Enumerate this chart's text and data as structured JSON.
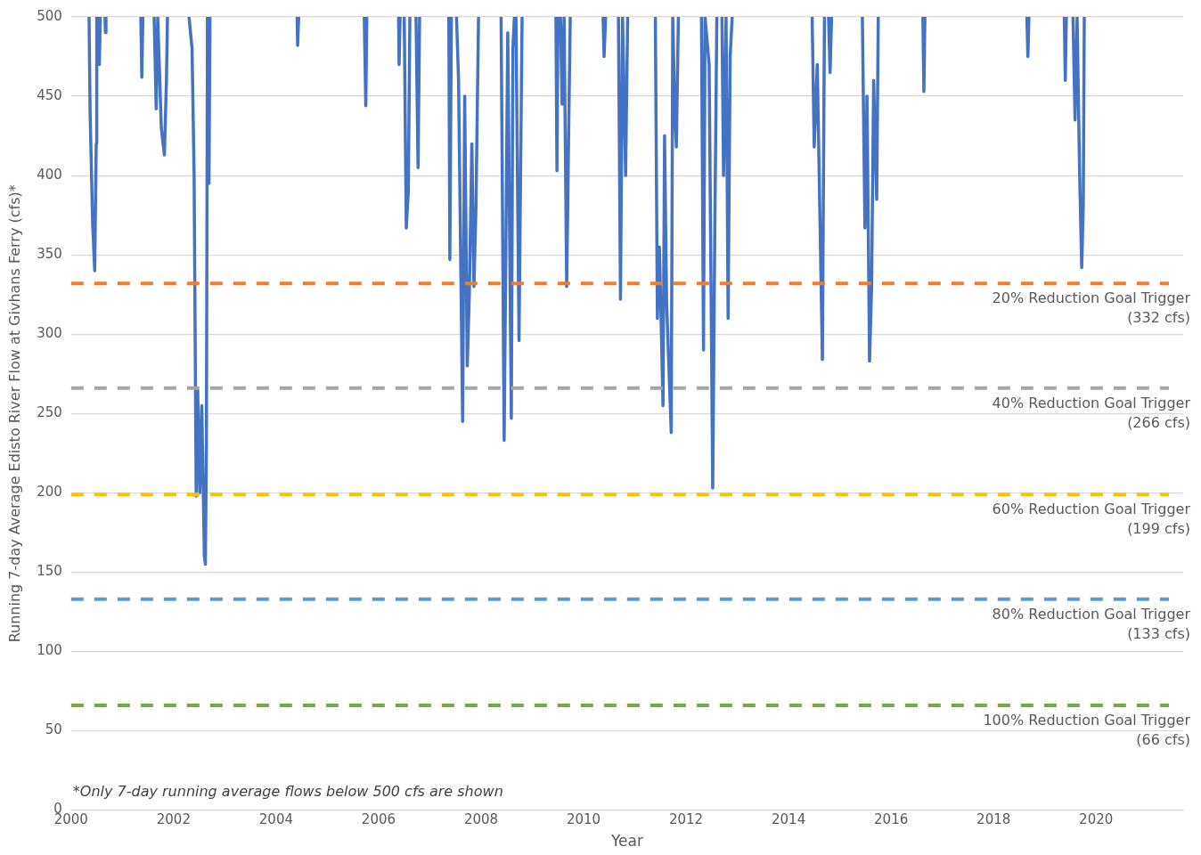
{
  "chart_data": {
    "type": "line",
    "xlabel": "Year",
    "ylabel": "Running 7-day Average Edisto River Flow at Givhans Ferry (cfs)*",
    "xlim": [
      2000,
      2021.7
    ],
    "xticks": [
      2000,
      2002,
      2004,
      2006,
      2008,
      2010,
      2012,
      2014,
      2016,
      2018,
      2020
    ],
    "ylim": [
      0,
      500
    ],
    "yticks": [
      0,
      50,
      100,
      150,
      200,
      250,
      300,
      350,
      400,
      450,
      500
    ],
    "grid": "y",
    "legend": false,
    "marker": "none",
    "line_style": "solid",
    "series": [
      {
        "color": "#4472c4",
        "x": [
          2000.35,
          2000.37,
          2000.42,
          2000.46,
          2000.49,
          2000.5,
          2000.515,
          2000.53,
          2000.55,
          2000.57,
          2000.6,
          2000.66,
          2000.67,
          2000.68,
          2001,
          2001.36,
          2001.38,
          2001.4,
          2001.5,
          2001.62,
          2001.66,
          2001.69,
          2001.72,
          2001.76,
          2001.82,
          2001.86,
          2001.88,
          2002,
          2002.3,
          2002.36,
          2002.4,
          2002.44,
          2002.47,
          2002.51,
          2002.55,
          2002.6,
          2002.62,
          2002.64,
          2002.66,
          2002.69,
          2002.71,
          2003,
          2004.41,
          2004.42,
          2004.44,
          2005,
          2005.72,
          2005.75,
          2005.77,
          2006,
          2006.39,
          2006.4,
          2006.42,
          2006.46,
          2006.5,
          2006.54,
          2006.58,
          2006.61,
          2006.67,
          2006.73,
          2006.77,
          2006.8,
          2007,
          2007.37,
          2007.39,
          2007.42,
          2007.47,
          2007.52,
          2007.56,
          2007.64,
          2007.68,
          2007.73,
          2007.77,
          2007.82,
          2007.86,
          2007.9,
          2007.95,
          2008.2,
          2008.39,
          2008.45,
          2008.52,
          2008.59,
          2008.62,
          2008.65,
          2008.665,
          2008.68,
          2008.74,
          2008.8,
          2009,
          2009.46,
          2009.48,
          2009.5,
          2009.52,
          2009.55,
          2009.58,
          2009.62,
          2009.67,
          2009.71,
          2009.74,
          2010,
          2010.38,
          2010.4,
          2010.43,
          2010.55,
          2010.68,
          2010.72,
          2010.76,
          2010.82,
          2010.86,
          2011,
          2011.4,
          2011.44,
          2011.48,
          2011.55,
          2011.58,
          2011.62,
          2011.71,
          2011.74,
          2011.78,
          2011.81,
          2011.85,
          2012,
          2012.3,
          2012.34,
          2012.37,
          2012.45,
          2012.52,
          2012.56,
          2012.6,
          2012.65,
          2012.7,
          2012.73,
          2012.78,
          2012.82,
          2012.86,
          2012.9,
          2013.5,
          2014.46,
          2014.5,
          2014.56,
          2014.66,
          2014.7,
          2014.74,
          2014.78,
          2014.81,
          2014.84,
          2015,
          2015.44,
          2015.49,
          2015.53,
          2015.58,
          2015.62,
          2015.66,
          2015.72,
          2015.75,
          2016,
          2016.62,
          2016.64,
          2016.66,
          2017,
          2018.65,
          2018.67,
          2018.69,
          2019,
          2019.38,
          2019.4,
          2019.42,
          2019.5,
          2019.55,
          2019.59,
          2019.63,
          2019.68,
          2019.72,
          2019.75,
          2019.77
        ],
        "values": [
          500,
          440,
          370,
          340,
          420,
          500,
          null,
          500,
          470,
          500,
          null,
          500,
          490,
          500,
          null,
          500,
          462,
          500,
          null,
          500,
          442,
          500,
          470,
          430,
          413,
          460,
          500,
          null,
          500,
          480,
          400,
          198,
          265,
          200,
          255,
          160,
          155,
          230,
          500,
          395,
          500,
          null,
          500,
          482,
          500,
          null,
          500,
          444,
          500,
          null,
          500,
          470,
          500,
          null,
          500,
          367,
          390,
          500,
          null,
          500,
          405,
          500,
          null,
          500,
          347,
          500,
          null,
          500,
          460,
          245,
          450,
          280,
          325,
          420,
          330,
          380,
          500,
          null,
          500,
          233,
          490,
          247,
          480,
          500,
          null,
          500,
          296,
          500,
          null,
          500,
          403,
          500,
          null,
          500,
          445,
          500,
          330,
          430,
          500,
          null,
          500,
          475,
          500,
          null,
          500,
          322,
          500,
          400,
          500,
          null,
          500,
          310,
          355,
          255,
          425,
          320,
          238,
          500,
          440,
          418,
          500,
          null,
          500,
          290,
          500,
          470,
          203,
          365,
          500,
          null,
          500,
          400,
          500,
          310,
          475,
          500,
          null,
          500,
          418,
          470,
          284,
          500,
          null,
          500,
          465,
          500,
          null,
          500,
          367,
          450,
          283,
          330,
          460,
          385,
          500,
          null,
          500,
          453,
          500,
          null,
          500,
          475,
          500,
          null,
          500,
          460,
          500,
          null,
          500,
          435,
          500,
          400,
          342,
          380,
          500
        ]
      }
    ],
    "ref_lines": [
      {
        "axis": "y",
        "value": 332,
        "label": "20% Reduction Goal Trigger\n(332 cfs)",
        "color": "#ed7d31",
        "line_style": "dashed"
      },
      {
        "axis": "y",
        "value": 266,
        "label": "40% Reduction Goal Trigger\n(266 cfs)",
        "color": "#a5a5a5",
        "line_style": "dashed"
      },
      {
        "axis": "y",
        "value": 199,
        "label": "60% Reduction Goal Trigger\n(199 cfs)",
        "color": "#ffc000",
        "line_style": "dashed"
      },
      {
        "axis": "y",
        "value": 133,
        "label": "80% Reduction Goal Trigger\n(133 cfs)",
        "color": "#5b9bd5",
        "line_style": "dashed"
      },
      {
        "axis": "y",
        "value": 66,
        "label": "100% Reduction Goal Trigger\n(66 cfs)",
        "color": "#70ad47",
        "line_style": "dashed"
      }
    ],
    "annotations": [
      "*Only 7-day running average flows below 500 cfs are shown"
    ]
  }
}
